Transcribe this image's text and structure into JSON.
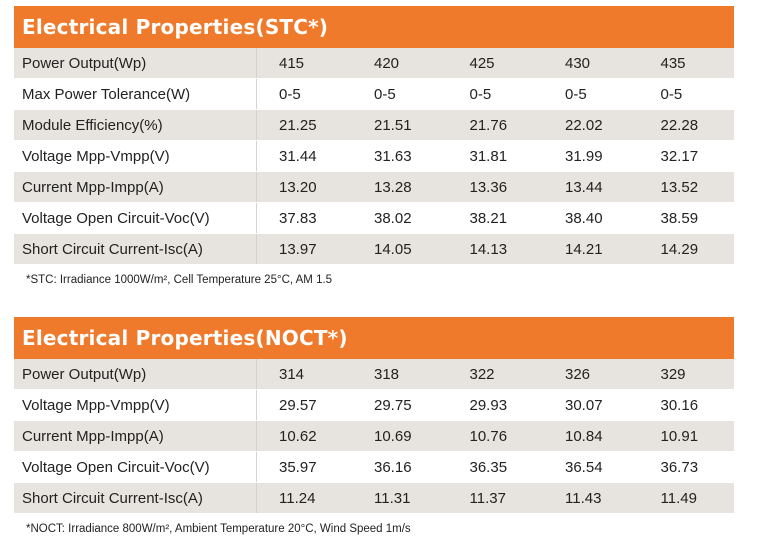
{
  "stc": {
    "title": "Electrical Properties(STC*)",
    "rows": [
      {
        "label": "Power Output(Wp)",
        "values": [
          "415",
          "420",
          "425",
          "430",
          "435"
        ]
      },
      {
        "label": "Max Power Tolerance(W)",
        "values": [
          "0-5",
          "0-5",
          "0-5",
          "0-5",
          "0-5"
        ]
      },
      {
        "label": "Module Efficiency(%)",
        "values": [
          "21.25",
          "21.51",
          "21.76",
          "22.02",
          "22.28"
        ]
      },
      {
        "label": "Voltage Mpp-Vmpp(V)",
        "values": [
          "31.44",
          "31.63",
          "31.81",
          "31.99",
          "32.17"
        ]
      },
      {
        "label": "Current Mpp-Impp(A)",
        "values": [
          "13.20",
          "13.28",
          "13.36",
          "13.44",
          "13.52"
        ]
      },
      {
        "label": "Voltage Open Circuit-Voc(V)",
        "values": [
          "37.83",
          "38.02",
          "38.21",
          "38.40",
          "38.59"
        ]
      },
      {
        "label": "Short Circuit Current-Isc(A)",
        "values": [
          "13.97",
          "14.05",
          "14.13",
          "14.21",
          "14.29"
        ]
      }
    ],
    "note": "*STC: Irradiance 1000W/m², Cell Temperature 25°C, AM 1.5"
  },
  "noct": {
    "title": "Electrical Properties(NOCT*)",
    "rows": [
      {
        "label": "Power Output(Wp)",
        "values": [
          "314",
          "318",
          "322",
          "326",
          "329"
        ]
      },
      {
        "label": "Voltage Mpp-Vmpp(V)",
        "values": [
          "29.57",
          "29.75",
          "29.93",
          "30.07",
          "30.16"
        ]
      },
      {
        "label": "Current Mpp-Impp(A)",
        "values": [
          "10.62",
          "10.69",
          "10.76",
          "10.84",
          "10.91"
        ]
      },
      {
        "label": "Voltage Open Circuit-Voc(V)",
        "values": [
          "35.97",
          "36.16",
          "36.35",
          "36.54",
          "36.73"
        ]
      },
      {
        "label": "Short Circuit Current-Isc(A)",
        "values": [
          "11.24",
          "11.31",
          "11.37",
          "11.43",
          "11.49"
        ]
      }
    ],
    "note": "*NOCT: Irradiance 800W/m², Ambient Temperature 20°C, Wind Speed 1m/s"
  },
  "colors": {
    "header": "#f07a2b",
    "row_shade": "#e7e3de"
  }
}
